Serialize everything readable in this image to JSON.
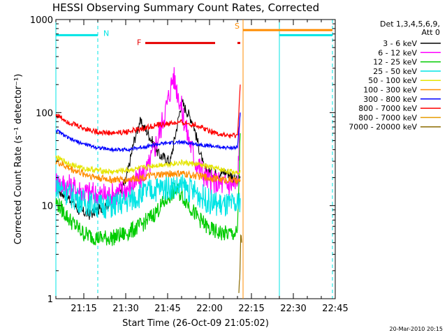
{
  "chart_data": {
    "type": "line",
    "title": "HESSI Observing Summary Count Rates, Corrected",
    "xlabel": "Start Time (26-Oct-09 21:05:02)",
    "ylabel": "Corrected Count Rate (s⁻¹ detector⁻¹)",
    "ylog": true,
    "xlim": [
      "21:05",
      "22:45"
    ],
    "ylim": [
      1,
      1000
    ],
    "xticks": [
      "21:15",
      "21:30",
      "21:45",
      "22:00",
      "22:15",
      "22:30",
      "22:45"
    ],
    "yticks": [
      "1",
      "10",
      "100",
      "1000"
    ],
    "grid": false,
    "legend_position": "right",
    "legend_header": [
      "Det 1,3,4,5,6,9,",
      "Att 0"
    ],
    "footer_stamp": "20-Mar-2010 20:15",
    "markers": {
      "N": {
        "label": "N",
        "color": "#00e5e5",
        "segments": [
          [
            "21:05",
            "21:20"
          ],
          [
            "22:25",
            "22:44"
          ]
        ],
        "level": 680,
        "boundaries": [
          "21:05",
          "21:20",
          "22:25",
          "22:44"
        ]
      },
      "F": {
        "label": "F",
        "color": "#e60000",
        "segments": [
          [
            "21:37",
            "22:02"
          ],
          [
            "22:10",
            "22:11"
          ]
        ],
        "level": 560
      },
      "S": {
        "label": "S",
        "color": "#ff8c00",
        "segments": [
          [
            "22:12",
            "22:44"
          ]
        ],
        "level": 770,
        "boundaries": [
          "22:12"
        ]
      }
    },
    "series": [
      {
        "name": "3 - 6 keV",
        "color": "#000000",
        "x": [
          "21:05",
          "21:10",
          "21:13",
          "21:17",
          "21:20",
          "21:25",
          "21:30",
          "21:33",
          "21:35",
          "21:38",
          "21:42",
          "21:46",
          "21:50",
          "21:54",
          "21:58",
          "22:02",
          "22:06",
          "22:08",
          "22:10",
          "22:11"
        ],
        "values": [
          15,
          12,
          9,
          8,
          9,
          11,
          18,
          50,
          80,
          60,
          35,
          30,
          130,
          80,
          25,
          22,
          23,
          21,
          18,
          20
        ]
      },
      {
        "name": "6 - 12 keV",
        "color": "#ff00ff",
        "x": [
          "21:05",
          "21:10",
          "21:15",
          "21:20",
          "21:25",
          "21:30",
          "21:34",
          "21:38",
          "21:42",
          "21:45",
          "21:47",
          "21:49",
          "21:52",
          "21:55",
          "22:00",
          "22:05",
          "22:08",
          "22:10",
          "22:11"
        ],
        "values": [
          18,
          16,
          14,
          13,
          13,
          15,
          18,
          25,
          60,
          130,
          250,
          150,
          60,
          30,
          18,
          17,
          17,
          16,
          100
        ]
      },
      {
        "name": "12 - 25 keV",
        "color": "#00cc00",
        "x": [
          "21:05",
          "21:10",
          "21:15",
          "21:20",
          "21:25",
          "21:30",
          "21:35",
          "21:40",
          "21:45",
          "21:48",
          "21:51",
          "21:55",
          "22:00",
          "22:05",
          "22:08",
          "22:10",
          "22:11"
        ],
        "values": [
          11,
          7,
          5,
          4.5,
          4.5,
          5,
          6,
          8,
          12,
          15,
          12,
          8,
          5.5,
          5,
          5,
          5,
          60
        ]
      },
      {
        "name": "25 - 50 keV",
        "color": "#00e5e5",
        "x": [
          "21:05",
          "21:10",
          "21:15",
          "21:20",
          "21:25",
          "21:30",
          "21:35",
          "21:40",
          "21:45",
          "21:50",
          "21:55",
          "22:00",
          "22:05",
          "22:08",
          "22:10",
          "22:11"
        ],
        "values": [
          17,
          13,
          11,
          10,
          10,
          11,
          13,
          15,
          16,
          16,
          14,
          11,
          10,
          10,
          10,
          12
        ]
      },
      {
        "name": "50 - 100 keV",
        "color": "#e5e500",
        "x": [
          "21:05",
          "21:10",
          "21:15",
          "21:20",
          "21:25",
          "21:30",
          "21:35",
          "21:40",
          "21:45",
          "21:50",
          "21:55",
          "22:00",
          "22:05",
          "22:08",
          "22:10",
          "22:11"
        ],
        "values": [
          33,
          28,
          25,
          24,
          23,
          24,
          25,
          27,
          28,
          29,
          28,
          26,
          24,
          23,
          23,
          24
        ]
      },
      {
        "name": "100 - 300 keV",
        "color": "#ff8c00",
        "x": [
          "21:05",
          "21:10",
          "21:15",
          "21:20",
          "21:25",
          "21:30",
          "21:35",
          "21:40",
          "21:45",
          "21:50",
          "21:55",
          "22:00",
          "22:05",
          "22:08",
          "22:10",
          "22:11"
        ],
        "values": [
          30,
          25,
          22,
          20,
          19,
          19,
          20,
          21,
          22,
          22,
          21,
          20,
          19,
          19,
          18,
          19
        ]
      },
      {
        "name": "300 - 800 keV",
        "color": "#0000ff",
        "x": [
          "21:05",
          "21:10",
          "21:15",
          "21:20",
          "21:25",
          "21:30",
          "21:35",
          "21:40",
          "21:45",
          "21:50",
          "21:55",
          "22:00",
          "22:05",
          "22:08",
          "22:10",
          "22:11"
        ],
        "values": [
          65,
          52,
          46,
          42,
          40,
          40,
          42,
          45,
          47,
          48,
          46,
          44,
          42,
          42,
          42,
          100
        ]
      },
      {
        "name": "800 - 7000 keV",
        "color": "#ff0000",
        "x": [
          "21:05",
          "21:10",
          "21:15",
          "21:20",
          "21:25",
          "21:30",
          "21:35",
          "21:40",
          "21:45",
          "21:50",
          "21:55",
          "22:00",
          "22:05",
          "22:08",
          "22:10",
          "22:11"
        ],
        "values": [
          95,
          78,
          68,
          62,
          60,
          62,
          66,
          72,
          76,
          78,
          74,
          64,
          57,
          56,
          56,
          200
        ]
      },
      {
        "name": "800 - 7000 keV",
        "color": "#e69b00",
        "x": [],
        "values": []
      },
      {
        "name": "7000 - 20000 keV",
        "color": "#8b6b00",
        "x": [
          "22:10.5",
          "22:11",
          "22:11.5"
        ],
        "values": [
          1.8,
          3,
          4
        ]
      }
    ]
  }
}
